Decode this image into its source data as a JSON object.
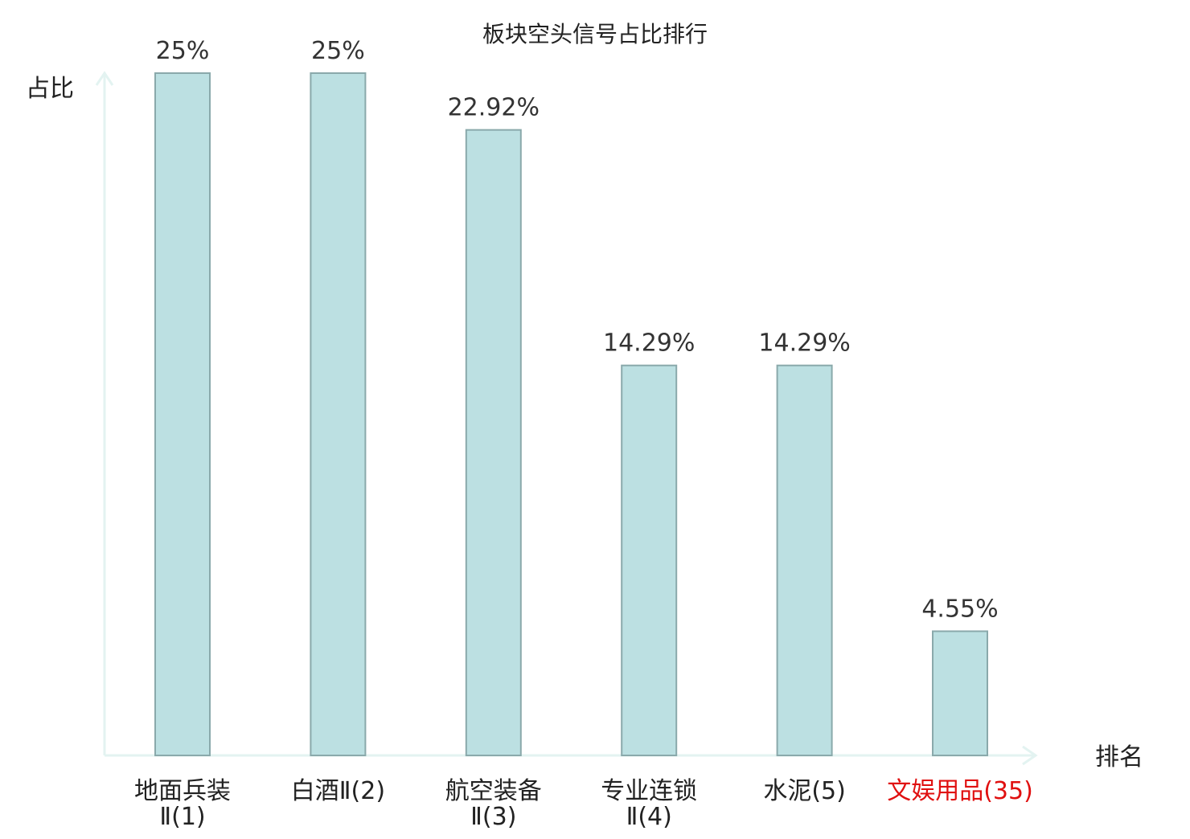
{
  "chart_data": {
    "type": "bar",
    "title": "板块空头信号占比排行",
    "ylabel": "占比",
    "xlabel": "排名",
    "ylim": [
      0,
      25
    ],
    "grid": false,
    "categories": [
      {
        "lines": [
          "地面兵装",
          "Ⅱ(1)"
        ],
        "highlight": false
      },
      {
        "lines": [
          "白酒Ⅱ(2)"
        ],
        "highlight": false
      },
      {
        "lines": [
          "航空装备",
          "Ⅱ(3)"
        ],
        "highlight": false
      },
      {
        "lines": [
          "专业连锁",
          "Ⅱ(4)"
        ],
        "highlight": false
      },
      {
        "lines": [
          "水泥(5)"
        ],
        "highlight": false
      },
      {
        "lines": [
          "文娱用品(35)"
        ],
        "highlight": true
      }
    ],
    "values": [
      25,
      25,
      22.92,
      14.29,
      14.29,
      4.55
    ],
    "value_labels": [
      "25%",
      "25%",
      "22.92%",
      "14.29%",
      "14.29%",
      "4.55%"
    ]
  },
  "colors": {
    "bar_fill": "#bce0e2",
    "bar_stroke": "#8aa9ab",
    "axis": "#e3f3f1",
    "text": "#222222",
    "value_text": "#333333",
    "highlight": "#e01010"
  }
}
